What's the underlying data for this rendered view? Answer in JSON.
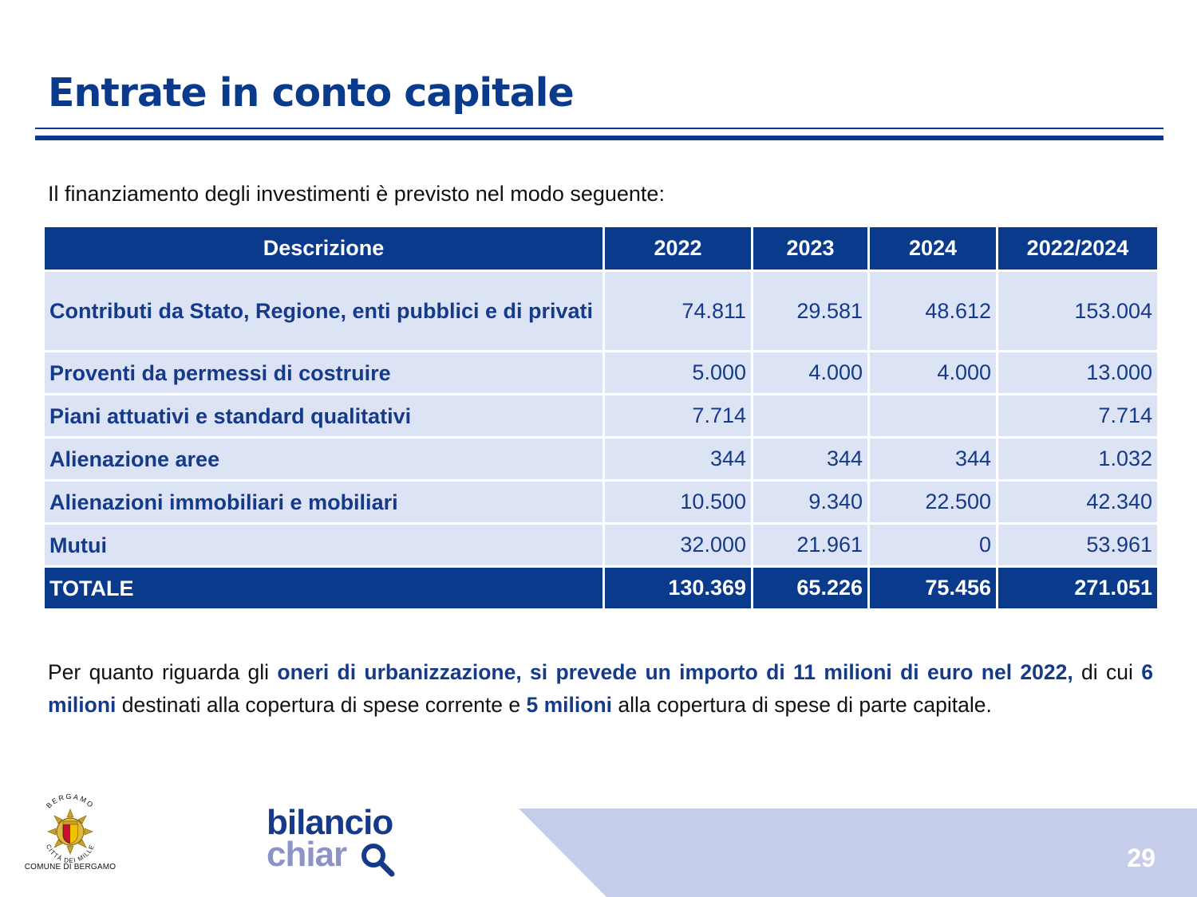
{
  "title": "Entrate in conto capitale",
  "intro": "Il finanziamento degli investimenti è previsto nel modo seguente:",
  "table": {
    "headers": [
      "Descrizione",
      "2022",
      "2023",
      "2024",
      "2022/2024"
    ],
    "rows": [
      {
        "desc": "Contributi da Stato, Regione, enti pubblici e di privati",
        "y2022": "74.811",
        "y2023": "29.581",
        "y2024": "48.612",
        "total": "153.004"
      },
      {
        "desc": "Proventi da permessi di costruire",
        "y2022": "5.000",
        "y2023": "4.000",
        "y2024": "4.000",
        "total": "13.000"
      },
      {
        "desc": "Piani attuativi e standard qualitativi",
        "y2022": "7.714",
        "y2023": "",
        "y2024": "",
        "total": "7.714"
      },
      {
        "desc": "Alienazione aree",
        "y2022": "344",
        "y2023": "344",
        "y2024": "344",
        "total": "1.032"
      },
      {
        "desc": "Alienazioni immobiliari e mobiliari",
        "y2022": "10.500",
        "y2023": "9.340",
        "y2024": "22.500",
        "total": "42.340"
      },
      {
        "desc": "Mutui",
        "y2022": "32.000",
        "y2023": "21.961",
        "y2024": "0",
        "total": "53.961"
      }
    ],
    "totals": {
      "label": "TOTALE",
      "y2022": "130.369",
      "y2023": "65.226",
      "y2024": "75.456",
      "total": "271.051"
    }
  },
  "note": {
    "p1": "Per quanto riguarda gli ",
    "h1": "oneri di urbanizzazione, si prevede un importo di 11 milioni di euro nel 2022,",
    "p2": " di cui ",
    "h2": "6 milioni",
    "p3": " destinati alla copertura di spese corrente e ",
    "h3": "5 milioni",
    "p4": " alla copertura di spese di parte capitale."
  },
  "footer": {
    "emblem_top_text": "BERGAMO",
    "emblem_bottom_text": "CITTÀ DEI MILLE",
    "comune": "COMUNE DI BERGAMO",
    "brand_line1": "bilancio",
    "brand_line2": "chiar",
    "page_number": "29"
  },
  "colors": {
    "primary": "#0a3a8c",
    "row_bg": "#dce3f4",
    "band": "#c5cde9",
    "brand_light": "#8c93c6"
  }
}
